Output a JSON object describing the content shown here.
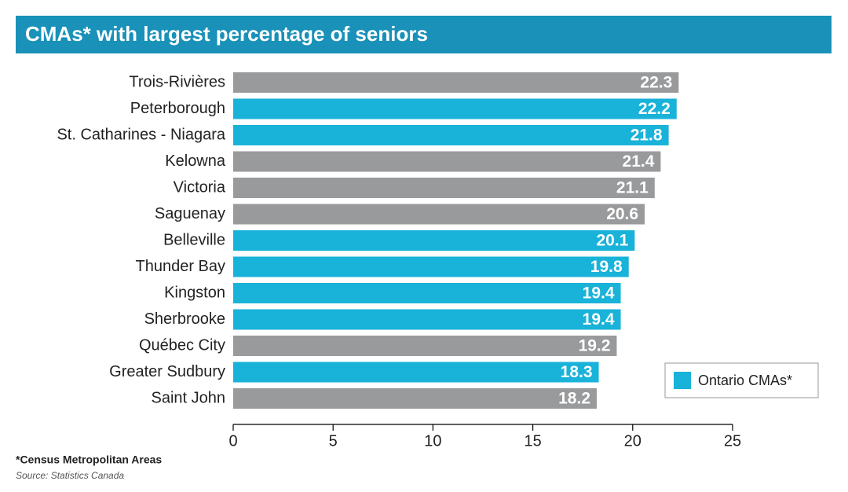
{
  "chart_data": {
    "type": "bar",
    "orientation": "horizontal",
    "title": "CMAs* with largest percentage of seniors",
    "categories": [
      "Trois-Rivières",
      "Peterborough",
      "St. Catharines - Niagara",
      "Kelowna",
      "Victoria",
      "Saguenay",
      "Belleville",
      "Thunder Bay",
      "Kingston",
      "Sherbrooke",
      "Québec City",
      "Greater Sudbury",
      "Saint John"
    ],
    "values": [
      22.3,
      22.2,
      21.8,
      21.4,
      21.1,
      20.6,
      20.1,
      19.8,
      19.4,
      19.4,
      19.2,
      18.3,
      18.2
    ],
    "colors": [
      "#999a9c",
      "#19b2d9",
      "#19b2d9",
      "#999a9c",
      "#999a9c",
      "#999a9c",
      "#19b2d9",
      "#19b2d9",
      "#19b2d9",
      "#19b2d9",
      "#999a9c",
      "#19b2d9",
      "#999a9c"
    ],
    "xlim": [
      0,
      25
    ],
    "xticks": [
      0,
      5,
      10,
      15,
      20,
      25
    ],
    "legend": {
      "label": "Ontario CMAs*",
      "color": "#19b2d9",
      "position": "lower right"
    },
    "footnote": "*Census Metropolitan Areas",
    "source": "Source: Statistics Canada"
  }
}
